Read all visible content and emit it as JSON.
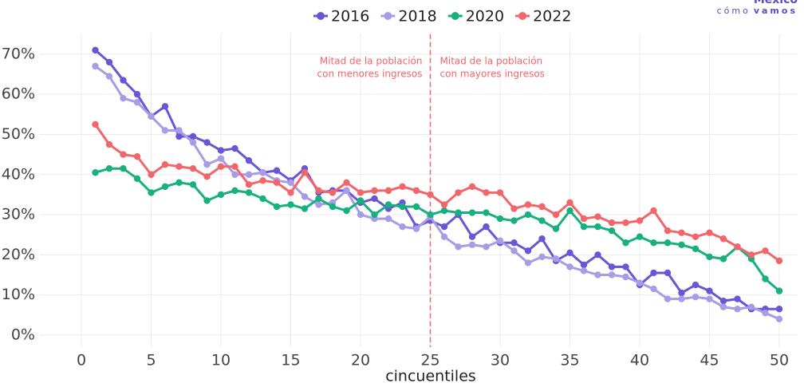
{
  "chart_data": {
    "type": "line",
    "x_label": "cincuentiles",
    "logo_top": "México",
    "logo_sub": [
      "cómo",
      "vamos"
    ],
    "x": [
      1,
      2,
      3,
      4,
      5,
      6,
      7,
      8,
      9,
      10,
      11,
      12,
      13,
      14,
      15,
      16,
      17,
      18,
      19,
      20,
      21,
      22,
      23,
      24,
      25,
      26,
      27,
      28,
      29,
      30,
      31,
      32,
      33,
      34,
      35,
      36,
      37,
      38,
      39,
      40,
      41,
      42,
      43,
      44,
      45,
      46,
      47,
      48,
      49,
      50
    ],
    "series": [
      {
        "name": "2016",
        "color": "#6a55d4",
        "values": [
          71,
          68,
          63.5,
          60,
          54.5,
          57,
          49.5,
          49.5,
          48,
          46,
          46.5,
          43.5,
          40.5,
          41,
          38.5,
          41.5,
          35.5,
          36,
          36,
          33,
          34,
          31.5,
          33,
          27,
          28.5,
          27,
          30,
          24.5,
          27,
          23,
          23,
          21,
          24,
          18.5,
          20.5,
          17.5,
          20,
          17,
          17,
          12.5,
          15.5,
          15.5,
          10.5,
          12.5,
          11,
          8.5,
          9,
          6.5,
          6.5,
          6.5
        ]
      },
      {
        "name": "2018",
        "color": "#a99ce6",
        "values": [
          67,
          64.5,
          59,
          58,
          54.5,
          51,
          51,
          48,
          42.5,
          44,
          40,
          40,
          40.5,
          38.5,
          38,
          34.5,
          32.5,
          33,
          36,
          30,
          29,
          29,
          27,
          26.5,
          29.5,
          24.5,
          22,
          22.5,
          22,
          23.5,
          21,
          18,
          19.5,
          19,
          17,
          16,
          15,
          15,
          14.5,
          13,
          11.5,
          9,
          9,
          9.5,
          9,
          7,
          6.5,
          7,
          5.5,
          4
        ]
      },
      {
        "name": "2020",
        "color": "#17b07e",
        "values": [
          40.5,
          41.5,
          41.5,
          39,
          35.5,
          37,
          38,
          37.5,
          33.5,
          35,
          36,
          35.5,
          34,
          32,
          32.5,
          31.5,
          34,
          32,
          31,
          33.5,
          30,
          32.5,
          32,
          32,
          30,
          31,
          30.5,
          30.5,
          30.5,
          29,
          28.5,
          30,
          28.5,
          26.5,
          31,
          27,
          27,
          26,
          23,
          24.5,
          23,
          23,
          22.5,
          21.5,
          19.5,
          19,
          22,
          19,
          14,
          11
        ]
      },
      {
        "name": "2022",
        "color": "#f2666a",
        "values": [
          52.5,
          47.5,
          45,
          44.5,
          40,
          42.5,
          42,
          41.5,
          39.5,
          42,
          42,
          37.5,
          38.5,
          38,
          35.5,
          40.5,
          36,
          35.5,
          38,
          35.5,
          36,
          36,
          37,
          36,
          35,
          32.5,
          35.5,
          37,
          35.5,
          35.5,
          31.5,
          32.5,
          32,
          30,
          33,
          29,
          29.5,
          28,
          28,
          28.5,
          31,
          26,
          25.5,
          24.5,
          25.5,
          24,
          22,
          20,
          21,
          18.5
        ]
      }
    ],
    "xlim": [
      -3,
      51.3
    ],
    "ylim": [
      -3,
      75
    ],
    "xticks": [
      0,
      5,
      10,
      15,
      20,
      25,
      30,
      35,
      40,
      45,
      50
    ],
    "yticks": [
      {
        "value": 0,
        "label": "0%"
      },
      {
        "value": 10,
        "label": "10%"
      },
      {
        "value": 20,
        "label": "20%"
      },
      {
        "value": 30,
        "label": "30%"
      },
      {
        "value": 40,
        "label": "40%"
      },
      {
        "value": 50,
        "label": "50%"
      },
      {
        "value": 60,
        "label": "60%"
      },
      {
        "value": 70,
        "label": "70%"
      }
    ],
    "grid": true,
    "legend": "top",
    "vline": {
      "x": 25,
      "color": "#f2666a"
    },
    "annotations": [
      {
        "lines": [
          "Mitad de la población",
          "con menores ingresos"
        ],
        "side": "left"
      },
      {
        "lines": [
          "Mitad de la población",
          "con mayores ingresos"
        ],
        "side": "right"
      }
    ]
  }
}
